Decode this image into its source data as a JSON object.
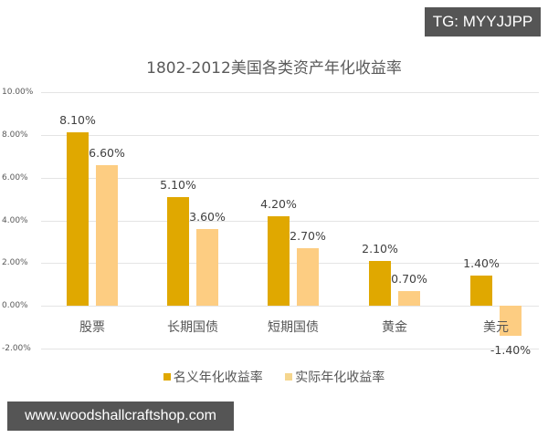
{
  "badges": {
    "top_right": "TG: MYYJJPP",
    "bottom_left": "www.woodshallcraftshop.com"
  },
  "colors": {
    "nominal": "#e0a800",
    "real": "#fdcd82"
  },
  "chart_data": {
    "type": "bar",
    "title": "1802-2012美国各类资产年化收益率",
    "xlabel": "",
    "ylabel": "",
    "categories": [
      "股票",
      "长期国债",
      "短期国债",
      "黄金",
      "美元"
    ],
    "series": [
      {
        "name": "名义年化收益率",
        "values": [
          8.1,
          5.1,
          4.2,
          2.1,
          1.4
        ],
        "labels": [
          "8.10%",
          "5.10%",
          "4.20%",
          "2.10%",
          "1.40%"
        ]
      },
      {
        "name": "实际年化收益率",
        "values": [
          6.6,
          3.6,
          2.7,
          0.7,
          -1.4
        ],
        "labels": [
          "6.60%",
          "3.60%",
          "2.70%",
          "0.70%",
          "-1.40%"
        ]
      }
    ],
    "ylim": [
      -2,
      10
    ],
    "yticks": [
      "10.00%",
      "8.00%",
      "6.00%",
      "4.00%",
      "2.00%",
      "0.00%",
      "-2.00%"
    ],
    "grid": true,
    "legend_position": "bottom",
    "unit": "%"
  }
}
